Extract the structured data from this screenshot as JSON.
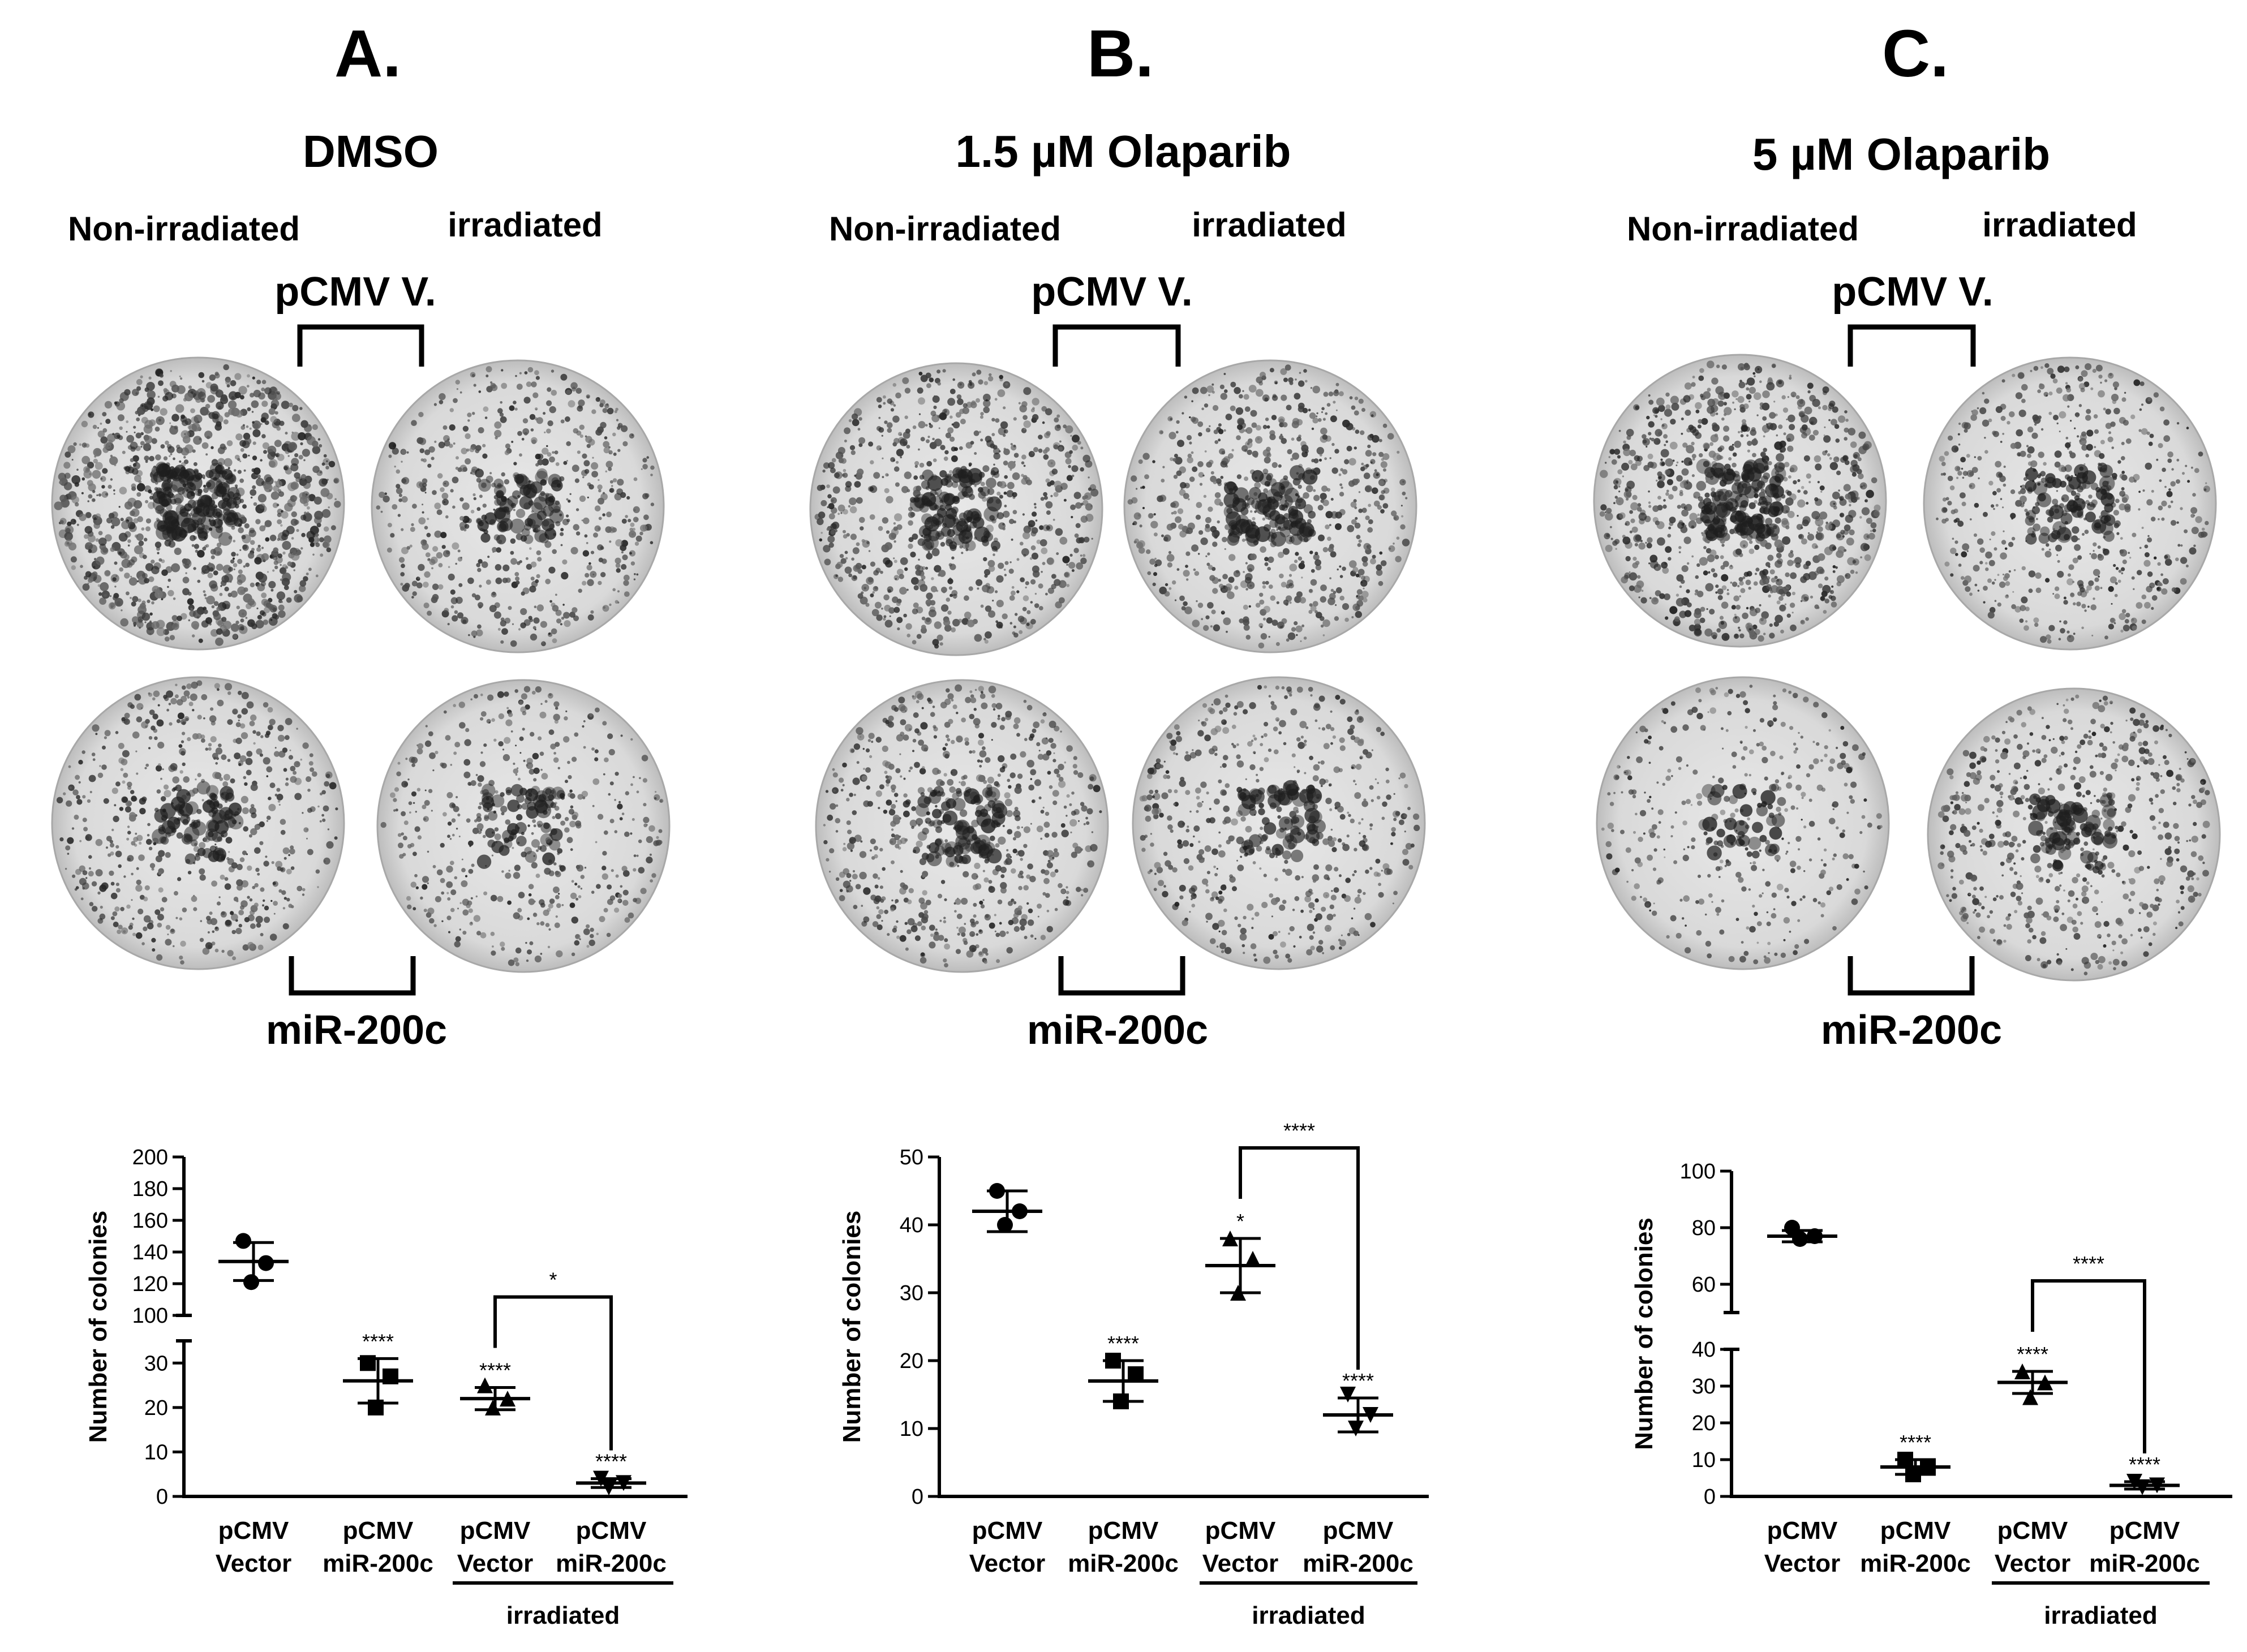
{
  "colors": {
    "ink": "#000000",
    "plate_bg": "#dcdcdc",
    "plate_dark": "#2a2a2a"
  },
  "panels": [
    {
      "letter": "A.",
      "treatment": "DMSO",
      "non_irradiated": "Non-irradiated",
      "irradiated": "irradiated",
      "vector_label": "pCMV V.",
      "mir_label": "miR-200c"
    },
    {
      "letter": "B.",
      "treatment": "1.5 µM Olaparib",
      "non_irradiated": "Non-irradiated",
      "irradiated": "irradiated",
      "vector_label": "pCMV V.",
      "mir_label": "miR-200c"
    },
    {
      "letter": "C.",
      "treatment": "5 µM Olaparib",
      "non_irradiated": "Non-irradiated",
      "irradiated": "irradiated",
      "vector_label": "pCMV V.",
      "mir_label": "miR-200c"
    }
  ],
  "chart_data": [
    {
      "type": "scatter",
      "ylabel": "Number of colonies",
      "axis_break": true,
      "y_lower": {
        "range": [
          0,
          35
        ],
        "ticks": [
          0,
          10,
          20,
          30
        ]
      },
      "y_upper": {
        "range": [
          100,
          200
        ],
        "ticks": [
          100,
          120,
          140,
          160,
          180,
          200
        ]
      },
      "categories": [
        {
          "line1": "pCMV",
          "line2": "Vector"
        },
        {
          "line1": "pCMV",
          "line2": "miR-200c"
        },
        {
          "line1": "pCMV",
          "line2": "Vector"
        },
        {
          "line1": "pCMV",
          "line2": "miR-200c"
        }
      ],
      "group_label": "irradiated",
      "series": [
        {
          "marker": "circle",
          "points": [
            147,
            133,
            121
          ],
          "mean": 134,
          "sd": 12,
          "sig": ""
        },
        {
          "marker": "square",
          "points": [
            30,
            27,
            20
          ],
          "mean": 26,
          "sd": 5,
          "sig": "****"
        },
        {
          "marker": "triangle",
          "points": [
            25,
            22,
            20
          ],
          "mean": 22,
          "sd": 2.5,
          "sig": "****"
        },
        {
          "marker": "triangle-down",
          "points": [
            4,
            3,
            2
          ],
          "mean": 3,
          "sd": 1,
          "sig": "****"
        }
      ],
      "comparison": {
        "from": 2,
        "to": 3,
        "label": "*"
      }
    },
    {
      "type": "scatter",
      "ylabel": "Number of colonies",
      "axis_break": false,
      "y_lower": {
        "range": [
          0,
          50
        ],
        "ticks": [
          0,
          10,
          20,
          30,
          40,
          50
        ]
      },
      "categories": [
        {
          "line1": "pCMV",
          "line2": "Vector"
        },
        {
          "line1": "pCMV",
          "line2": "miR-200c"
        },
        {
          "line1": "pCMV",
          "line2": "Vector"
        },
        {
          "line1": "pCMV",
          "line2": "miR-200c"
        }
      ],
      "group_label": "irradiated",
      "series": [
        {
          "marker": "circle",
          "points": [
            45,
            42,
            40
          ],
          "mean": 42,
          "sd": 3,
          "sig": ""
        },
        {
          "marker": "square",
          "points": [
            20,
            18,
            14
          ],
          "mean": 17,
          "sd": 3,
          "sig": "****"
        },
        {
          "marker": "triangle",
          "points": [
            38,
            35,
            30
          ],
          "mean": 34,
          "sd": 4,
          "sig": "*"
        },
        {
          "marker": "triangle-down",
          "points": [
            15,
            12,
            10
          ],
          "mean": 12,
          "sd": 2.5,
          "sig": "****"
        }
      ],
      "comparison": {
        "from": 2,
        "to": 3,
        "label": "****"
      }
    },
    {
      "type": "scatter",
      "ylabel": "Number of colonies",
      "axis_break": true,
      "y_lower": {
        "range": [
          0,
          40
        ],
        "ticks": [
          0,
          10,
          20,
          30,
          40
        ]
      },
      "y_upper": {
        "range": [
          50,
          100
        ],
        "ticks": [
          60,
          80,
          100
        ]
      },
      "categories": [
        {
          "line1": "pCMV",
          "line2": "Vector"
        },
        {
          "line1": "pCMV",
          "line2": "miR-200c"
        },
        {
          "line1": "pCMV",
          "line2": "Vector"
        },
        {
          "line1": "pCMV",
          "line2": "miR-200c"
        }
      ],
      "group_label": "irradiated",
      "series": [
        {
          "marker": "circle",
          "points": [
            80,
            77,
            76
          ],
          "mean": 77,
          "sd": 2,
          "sig": ""
        },
        {
          "marker": "square",
          "points": [
            10,
            8,
            6
          ],
          "mean": 8,
          "sd": 2,
          "sig": "****"
        },
        {
          "marker": "triangle",
          "points": [
            34,
            31,
            27
          ],
          "mean": 31,
          "sd": 3,
          "sig": "****"
        },
        {
          "marker": "triangle-down",
          "points": [
            4,
            3,
            2.5
          ],
          "mean": 3,
          "sd": 1,
          "sig": "****"
        }
      ],
      "comparison": {
        "from": 2,
        "to": 3,
        "label": "****"
      }
    }
  ]
}
